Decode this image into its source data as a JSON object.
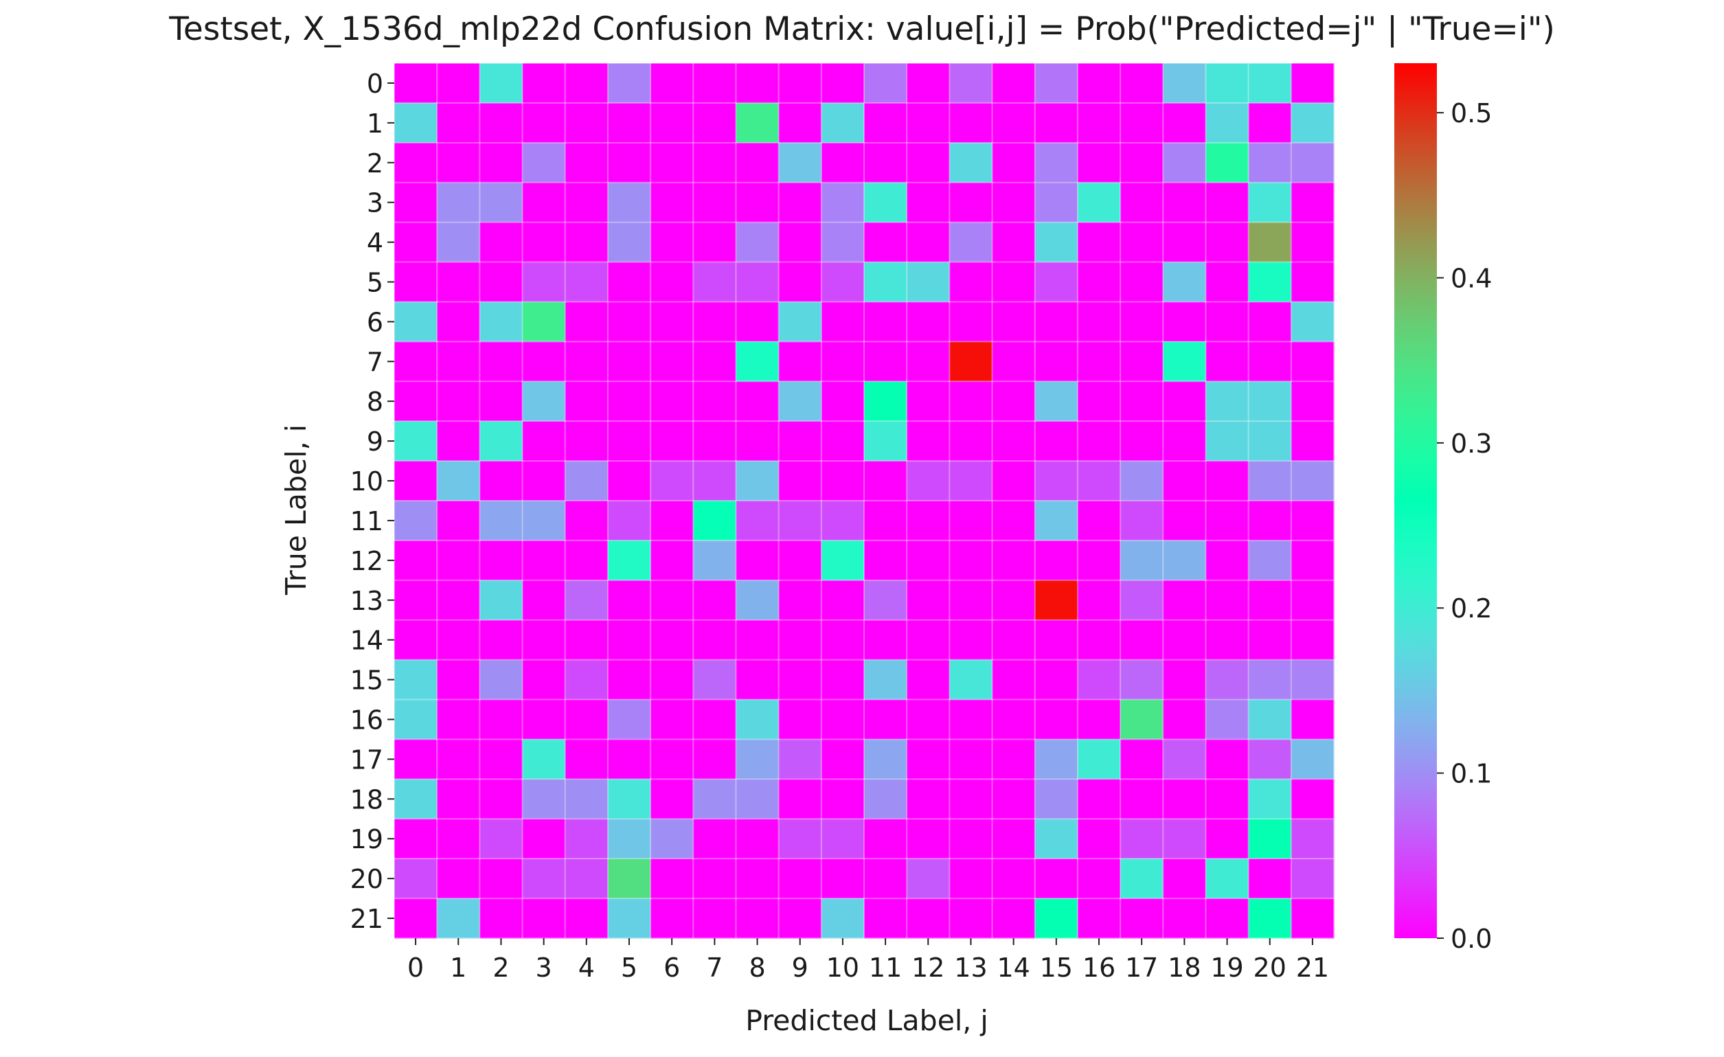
{
  "chart_data": {
    "type": "heatmap",
    "title": "Testset,  X_1536d_mlp22d Confusion Matrix: value[i,j] = Prob(\"Predicted=j\" | \"True=i\")",
    "xlabel": "Predicted Label, j",
    "ylabel": "True Label, i",
    "x_categories": [
      "0",
      "1",
      "2",
      "3",
      "4",
      "5",
      "6",
      "7",
      "8",
      "9",
      "10",
      "11",
      "12",
      "13",
      "14",
      "15",
      "16",
      "17",
      "18",
      "19",
      "20",
      "21"
    ],
    "y_categories": [
      "0",
      "1",
      "2",
      "3",
      "4",
      "5",
      "6",
      "7",
      "8",
      "9",
      "10",
      "11",
      "12",
      "13",
      "14",
      "15",
      "16",
      "17",
      "18",
      "19",
      "20",
      "21"
    ],
    "colormap": "rainbow",
    "vmin": 0.0,
    "vmax": 0.53,
    "colorbar_ticks": [
      "0.0",
      "0.1",
      "0.2",
      "0.3",
      "0.4",
      "0.5"
    ],
    "gridlines": true,
    "values": [
      [
        0,
        0,
        0.19,
        0,
        0,
        0.09,
        0,
        0,
        0,
        0,
        0,
        0.08,
        0,
        0.07,
        0,
        0.08,
        0,
        0,
        0.15,
        0.19,
        0.19,
        0
      ],
      [
        0.17,
        0,
        0,
        0,
        0,
        0,
        0,
        0,
        0.33,
        0,
        0.17,
        0,
        0,
        0,
        0,
        0,
        0,
        0,
        0,
        0.17,
        0,
        0.17
      ],
      [
        0,
        0,
        0,
        0.09,
        0,
        0,
        0,
        0,
        0,
        0.15,
        0,
        0,
        0,
        0.17,
        0,
        0.09,
        0,
        0,
        0.09,
        0.3,
        0.09,
        0.09
      ],
      [
        0,
        0.1,
        0.1,
        0,
        0,
        0.1,
        0,
        0,
        0,
        0,
        0.09,
        0.2,
        0,
        0,
        0,
        0.09,
        0.2,
        0,
        0,
        0,
        0.19,
        0
      ],
      [
        0,
        0.1,
        0,
        0,
        0,
        0.1,
        0,
        0,
        0.09,
        0,
        0.09,
        0,
        0,
        0.09,
        0,
        0.17,
        0,
        0,
        0,
        0,
        0.41,
        0
      ],
      [
        0,
        0,
        0,
        0.05,
        0.05,
        0,
        0,
        0.05,
        0.05,
        0,
        0.05,
        0.19,
        0.17,
        0,
        0,
        0.05,
        0,
        0,
        0.15,
        0,
        0.24,
        0
      ],
      [
        0.17,
        0,
        0.17,
        0.33,
        0,
        0,
        0,
        0,
        0,
        0.17,
        0,
        0,
        0,
        0,
        0,
        0,
        0,
        0,
        0,
        0,
        0,
        0.17
      ],
      [
        0,
        0,
        0,
        0,
        0,
        0,
        0,
        0,
        0.24,
        0,
        0,
        0,
        0,
        0.52,
        0,
        0,
        0,
        0,
        0.24,
        0,
        0,
        0
      ],
      [
        0,
        0,
        0,
        0.15,
        0,
        0,
        0,
        0,
        0,
        0.15,
        0,
        0.27,
        0,
        0,
        0,
        0.15,
        0,
        0,
        0,
        0.17,
        0.17,
        0
      ],
      [
        0.2,
        0,
        0.2,
        0,
        0,
        0,
        0,
        0,
        0,
        0,
        0,
        0.2,
        0,
        0,
        0,
        0,
        0,
        0,
        0,
        0.17,
        0.17,
        0
      ],
      [
        0,
        0.15,
        0,
        0,
        0.1,
        0,
        0.05,
        0.05,
        0.15,
        0,
        0,
        0,
        0.05,
        0.05,
        0,
        0.05,
        0.05,
        0.1,
        0,
        0,
        0.1,
        0.1
      ],
      [
        0.1,
        0,
        0.12,
        0.12,
        0,
        0.05,
        0,
        0.26,
        0.05,
        0.05,
        0.05,
        0,
        0,
        0,
        0,
        0.15,
        0,
        0.05,
        0,
        0,
        0,
        0
      ],
      [
        0,
        0,
        0,
        0,
        0,
        0.23,
        0,
        0.13,
        0,
        0,
        0.23,
        0,
        0,
        0,
        0,
        0,
        0,
        0.13,
        0.13,
        0,
        0.1,
        0
      ],
      [
        0,
        0,
        0.17,
        0,
        0.07,
        0,
        0,
        0,
        0.13,
        0,
        0,
        0.07,
        0,
        0,
        0,
        0.52,
        0,
        0.06,
        0,
        0,
        0,
        0
      ],
      [
        0,
        0,
        0,
        0,
        0,
        0,
        0,
        0,
        0,
        0,
        0,
        0,
        0,
        0,
        0,
        0,
        0,
        0,
        0,
        0,
        0,
        0
      ],
      [
        0.17,
        0,
        0.1,
        0,
        0.05,
        0,
        0,
        0.07,
        0,
        0,
        0,
        0.15,
        0,
        0.19,
        0,
        0,
        0.05,
        0.07,
        0,
        0.07,
        0.09,
        0.09
      ],
      [
        0.17,
        0,
        0,
        0,
        0,
        0.09,
        0,
        0,
        0.17,
        0,
        0,
        0,
        0,
        0,
        0,
        0,
        0,
        0.34,
        0,
        0.09,
        0.17,
        0
      ],
      [
        0,
        0,
        0,
        0.2,
        0,
        0,
        0,
        0,
        0.12,
        0.06,
        0,
        0.12,
        0,
        0,
        0,
        0.12,
        0.2,
        0,
        0.06,
        0,
        0.06,
        0.14
      ],
      [
        0.17,
        0,
        0,
        0.1,
        0.1,
        0.19,
        0,
        0.1,
        0.1,
        0,
        0,
        0.1,
        0,
        0,
        0,
        0.1,
        0,
        0,
        0,
        0,
        0.19,
        0
      ],
      [
        0,
        0,
        0.05,
        0,
        0.05,
        0.15,
        0.1,
        0,
        0,
        0.05,
        0.05,
        0,
        0,
        0,
        0,
        0.17,
        0,
        0.05,
        0.05,
        0,
        0.27,
        0.05
      ],
      [
        0.05,
        0,
        0,
        0.05,
        0.05,
        0.35,
        0,
        0,
        0,
        0,
        0,
        0,
        0.06,
        0,
        0,
        0,
        0,
        0.2,
        0,
        0.2,
        0,
        0.05
      ],
      [
        0,
        0.16,
        0,
        0,
        0,
        0.16,
        0,
        0,
        0,
        0,
        0.16,
        0,
        0,
        0,
        0,
        0.27,
        0,
        0,
        0,
        0,
        0.27,
        0
      ]
    ]
  }
}
